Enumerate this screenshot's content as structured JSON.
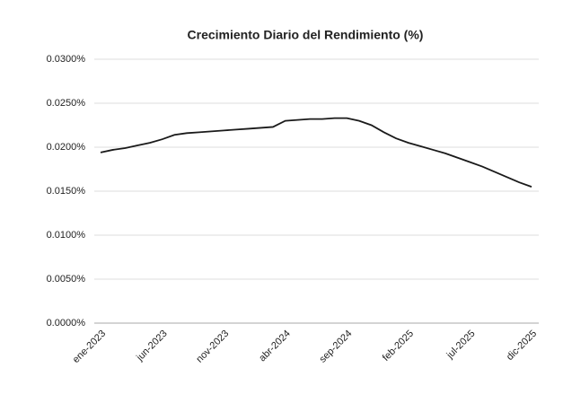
{
  "chart_data": {
    "type": "line",
    "title": "Crecimiento Diario del Rendimiento (%)",
    "categories": [
      "ene-2023",
      null,
      null,
      null,
      null,
      "jun-2023",
      null,
      null,
      null,
      null,
      "nov-2023",
      null,
      null,
      null,
      null,
      "abr-2024",
      null,
      null,
      null,
      null,
      "sep-2024",
      null,
      null,
      null,
      null,
      "feb-2025",
      null,
      null,
      null,
      null,
      "jul-2025",
      null,
      null,
      null,
      null,
      "dic-2025"
    ],
    "series": [
      {
        "name": "Crecimiento Diario del Rendimiento",
        "color": "#1a1a1a",
        "values": [
          0.0194,
          0.0197,
          0.0199,
          0.0202,
          0.0205,
          0.0209,
          0.0214,
          0.0216,
          0.0217,
          0.0218,
          0.0219,
          0.022,
          0.0221,
          0.0222,
          0.0223,
          0.023,
          0.0231,
          0.0232,
          0.0232,
          0.0233,
          0.0233,
          0.023,
          0.0225,
          0.0217,
          0.021,
          0.0205,
          0.0201,
          0.0197,
          0.0193,
          0.0188,
          0.0183,
          0.0178,
          0.0172,
          0.0166,
          0.016,
          0.0155
        ]
      }
    ],
    "ylim": [
      0,
      0.03
    ],
    "yticks": [
      {
        "value": 0,
        "label": "0.0000%"
      },
      {
        "value": 0.005,
        "label": "0.0050%"
      },
      {
        "value": 0.01,
        "label": "0.0100%"
      },
      {
        "value": 0.015,
        "label": "0.0150%"
      },
      {
        "value": 0.02,
        "label": "0.0200%"
      },
      {
        "value": 0.025,
        "label": "0.0250%"
      },
      {
        "value": 0.03,
        "label": "0.0300%"
      }
    ],
    "grid": true
  }
}
